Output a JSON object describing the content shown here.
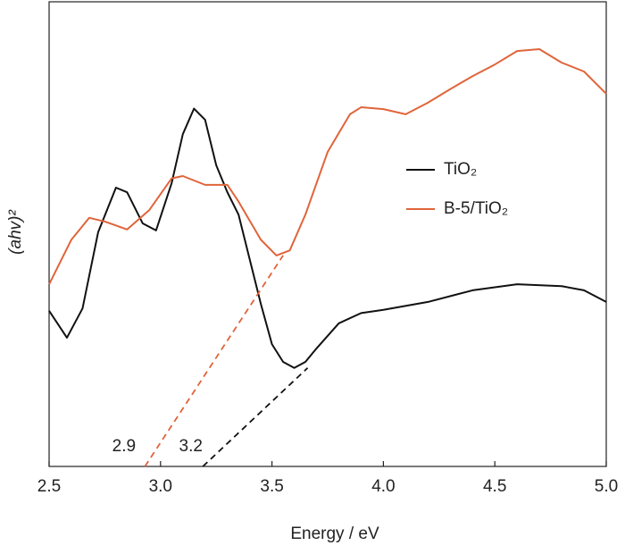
{
  "chart_data": {
    "type": "line",
    "x_label": "Energy / eV",
    "y_label": "(ahv)²",
    "xlim": [
      2.5,
      5.0
    ],
    "xticks": [
      2.5,
      {
        "value": 3,
        "label": "3.0"
      },
      3.5,
      {
        "value": 4,
        "label": "4.0"
      },
      4.5,
      {
        "value": 5,
        "label": "5.0"
      }
    ],
    "ylim": [
      0,
      100
    ],
    "legend": "right",
    "series": [
      {
        "name": "TiO₂",
        "color": "#111111",
        "x": [
          2.5,
          2.58,
          2.65,
          2.72,
          2.8,
          2.85,
          2.92,
          2.98,
          3.05,
          3.1,
          3.15,
          3.2,
          3.25,
          3.3,
          3.35,
          3.4,
          3.45,
          3.5,
          3.55,
          3.6,
          3.65,
          3.7,
          3.8,
          3.9,
          4.0,
          4.2,
          4.4,
          4.6,
          4.8,
          4.9,
          5.0
        ],
        "values": [
          33.5,
          27.7,
          34,
          50.4,
          60,
          59,
          52.3,
          50.8,
          61,
          71.5,
          77,
          74.6,
          64.8,
          59,
          54.2,
          44.6,
          35,
          26.3,
          22.5,
          21.2,
          22.5,
          25.4,
          30.8,
          33,
          33.7,
          35.4,
          37.9,
          39.2,
          38.8,
          37.9,
          35.4
        ]
      },
      {
        "name": "B-5/TiO₂",
        "color": "#e0643a",
        "x": [
          2.5,
          2.6,
          2.68,
          2.75,
          2.85,
          2.95,
          3.05,
          3.1,
          3.2,
          3.3,
          3.35,
          3.45,
          3.52,
          3.58,
          3.65,
          3.75,
          3.85,
          3.9,
          4.0,
          4.1,
          4.2,
          4.3,
          4.4,
          4.5,
          4.6,
          4.7,
          4.8,
          4.9,
          5.0
        ],
        "values": [
          39.2,
          48.8,
          53.5,
          52.7,
          51,
          55.2,
          62,
          62.5,
          60.6,
          60.6,
          57,
          48.8,
          45.4,
          46.5,
          54.2,
          67.7,
          75.8,
          77.3,
          76.9,
          75.8,
          78.3,
          81.2,
          84,
          86.5,
          89.4,
          89.8,
          86.9,
          85,
          80.2
        ]
      }
    ],
    "fit_lines": [
      {
        "color": "#e0643a",
        "x": [
          2.93,
          3.55
        ],
        "y": [
          0,
          45.4
        ]
      },
      {
        "color": "#111111",
        "x": [
          3.19,
          3.66
        ],
        "y": [
          0,
          21.2
        ]
      }
    ],
    "annotations": [
      {
        "text": "2.9",
        "x": 2.9
      },
      {
        "text": "3.2",
        "x": 3.2
      }
    ]
  }
}
